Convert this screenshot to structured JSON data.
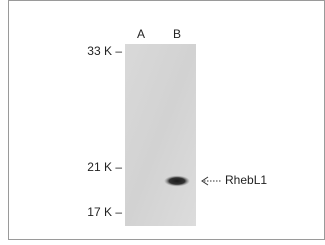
{
  "figure": {
    "lanes": [
      "A",
      "B"
    ],
    "markers": [
      "33 K –",
      "21 K –",
      "17 K –"
    ],
    "band_label": "RhebL1"
  }
}
